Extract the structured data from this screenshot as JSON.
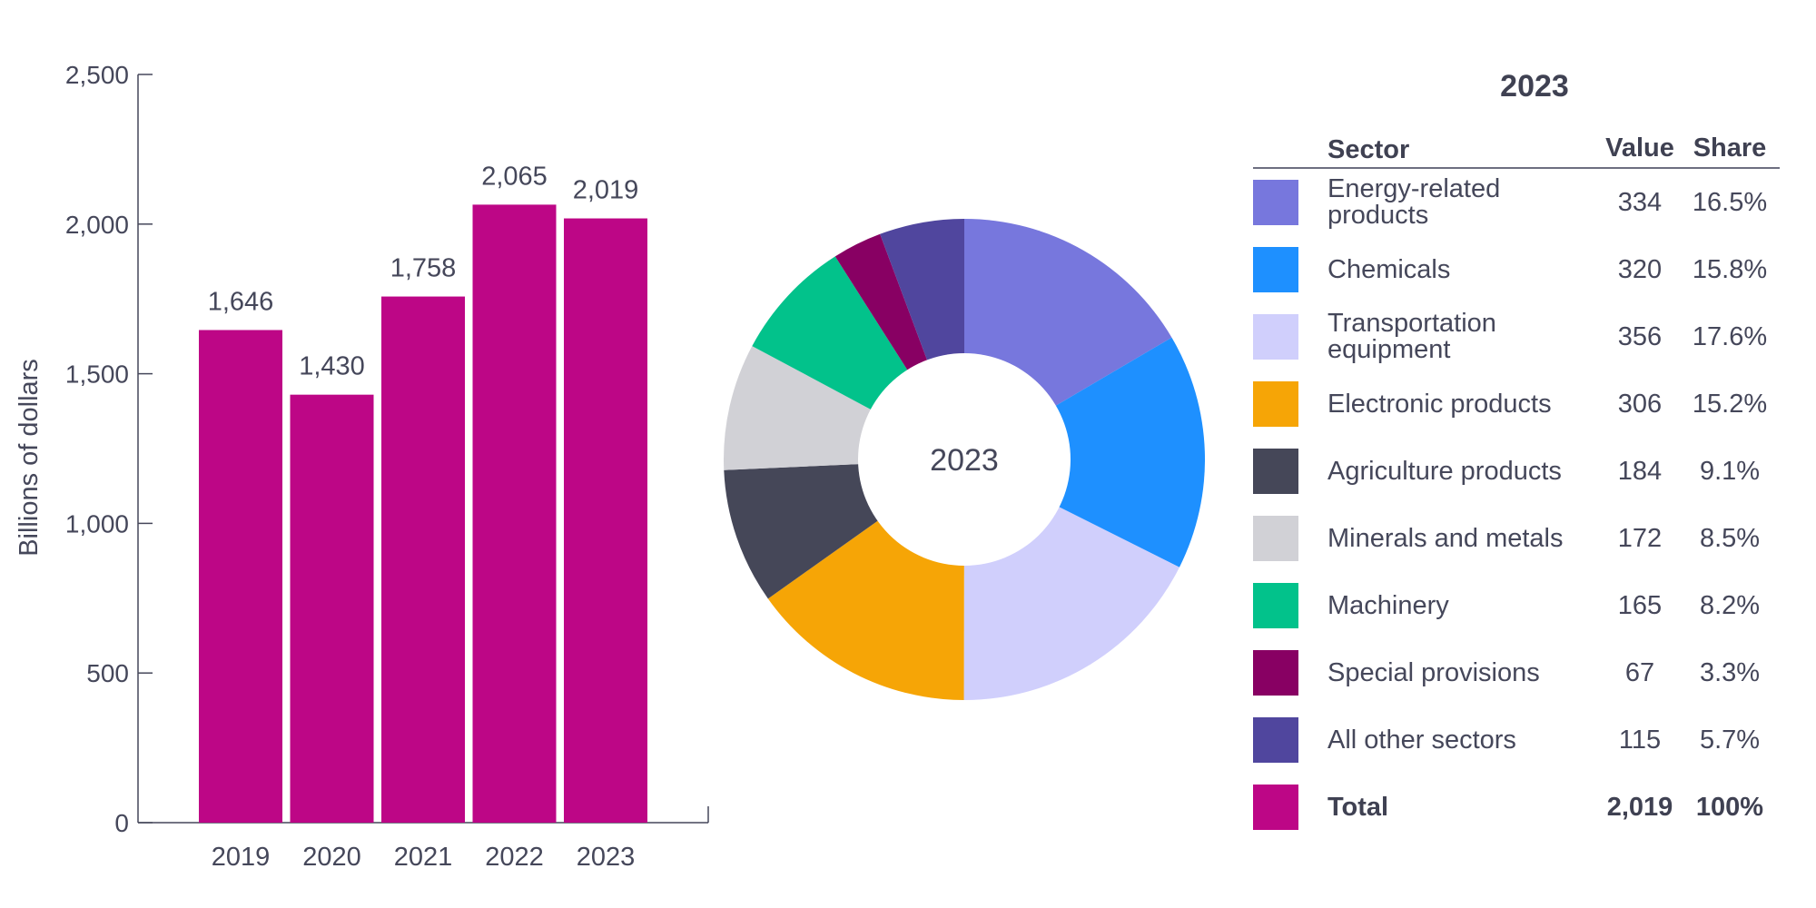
{
  "colors": {
    "bar": "#bd0686",
    "axis": "#45475a",
    "text": "#45475a",
    "donut_hole": "#ffffff"
  },
  "chart_data": [
    {
      "type": "bar",
      "categories": [
        "2019",
        "2020",
        "2021",
        "2022",
        "2023"
      ],
      "values": [
        1646,
        1430,
        1758,
        2065,
        2019
      ],
      "value_labels": [
        "1,646",
        "1,430",
        "1,758",
        "2,065",
        "2,019"
      ],
      "ylabel": "Billions of dollars",
      "xlabel": "",
      "ylim": [
        0,
        2500
      ],
      "yticks": [
        0,
        500,
        1000,
        1500,
        2000,
        2500
      ],
      "ytick_labels": [
        "0",
        "500",
        "1,000",
        "1,500",
        "2,000",
        "2,500"
      ],
      "grid": false
    },
    {
      "type": "pie",
      "donut": true,
      "center_label": "2023",
      "slices": [
        {
          "label": "Energy-related products",
          "value": 334,
          "color": "#7777dd"
        },
        {
          "label": "Chemicals",
          "value": 320,
          "color": "#1e90ff"
        },
        {
          "label": "Transportation equipment",
          "value": 356,
          "color": "#d0cffc"
        },
        {
          "label": "Electronic products",
          "value": 306,
          "color": "#f6a506"
        },
        {
          "label": "Agriculture products",
          "value": 184,
          "color": "#454758"
        },
        {
          "label": "Minerals and metals",
          "value": 172,
          "color": "#d1d1d6"
        },
        {
          "label": "Machinery",
          "value": 165,
          "color": "#02c28b"
        },
        {
          "label": "Special provisions",
          "value": 67,
          "color": "#880063"
        },
        {
          "label": "All other sectors",
          "value": 115,
          "color": "#50469e"
        }
      ]
    }
  ],
  "table": {
    "title": "2023",
    "headers": {
      "sector": "Sector",
      "value": "Value",
      "share": "Share"
    },
    "rows": [
      {
        "sector": "Energy-related products",
        "value": "334",
        "share": "16.5%",
        "color": "#7777dd"
      },
      {
        "sector": "Chemicals",
        "value": "320",
        "share": "15.8%",
        "color": "#1e90ff"
      },
      {
        "sector": "Transportation equipment",
        "value": "356",
        "share": "17.6%",
        "color": "#d0cffc"
      },
      {
        "sector": "Electronic products",
        "value": "306",
        "share": "15.2%",
        "color": "#f6a506"
      },
      {
        "sector": "Agriculture products",
        "value": "184",
        "share": "9.1%",
        "color": "#454758"
      },
      {
        "sector": "Minerals and metals",
        "value": "172",
        "share": "8.5%",
        "color": "#d1d1d6"
      },
      {
        "sector": "Machinery",
        "value": "165",
        "share": "8.2%",
        "color": "#02c28b"
      },
      {
        "sector": "Special provisions",
        "value": "67",
        "share": "3.3%",
        "color": "#880063"
      },
      {
        "sector": "All other sectors",
        "value": "115",
        "share": "5.7%",
        "color": "#50469e"
      }
    ],
    "total": {
      "sector": "Total",
      "value": "2,019",
      "share": "100%",
      "color": "#bd0686"
    }
  }
}
